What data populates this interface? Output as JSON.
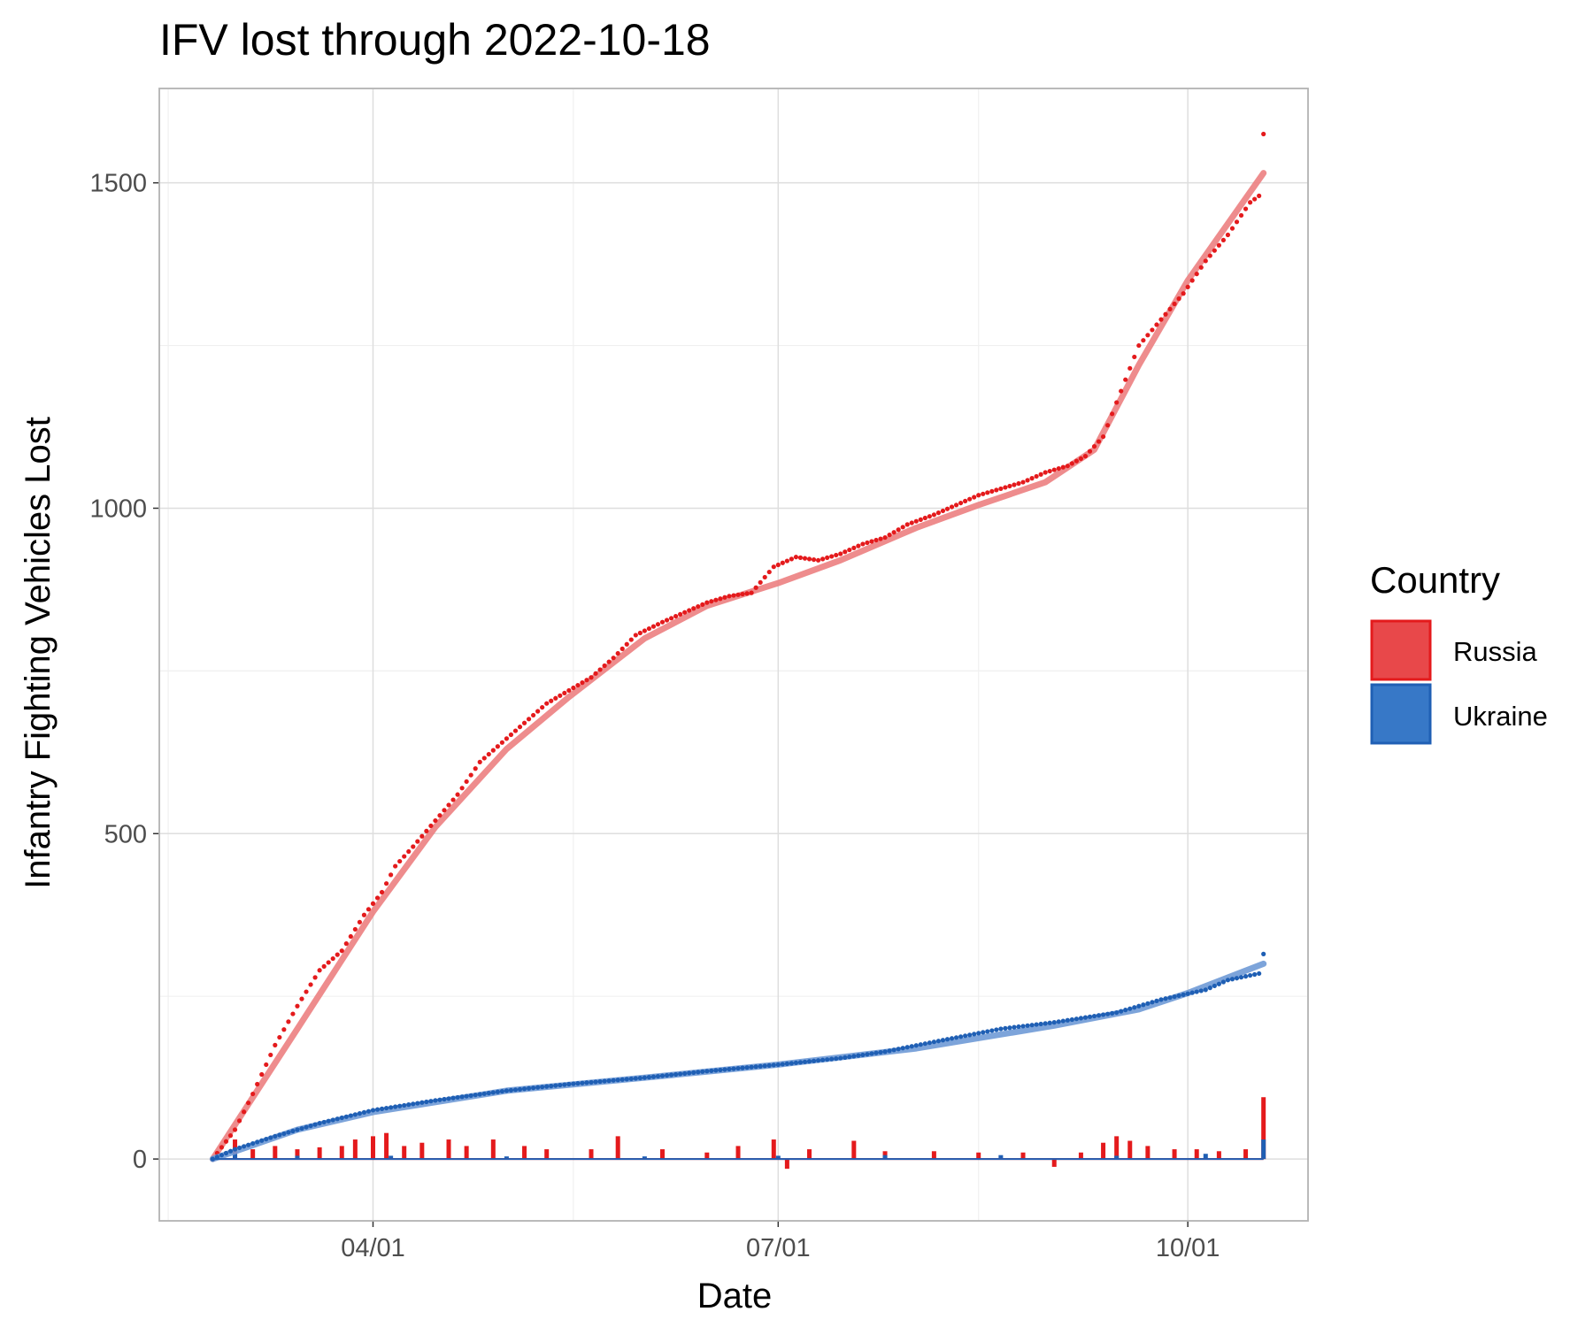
{
  "chart_data": {
    "type": "line",
    "title": "IFV lost through 2022-10-18",
    "xlabel": "Date",
    "ylabel": "Infantry Fighting Vehicles Lost",
    "x_range": [
      "2022-02-24",
      "2022-10-18"
    ],
    "x_ticks": [
      {
        "date": "2022-04-01",
        "label": "04/01"
      },
      {
        "date": "2022-07-01",
        "label": "07/01"
      },
      {
        "date": "2022-10-01",
        "label": "10/01"
      }
    ],
    "x_minor_ticks": [
      "2022-02-14",
      "2022-05-16",
      "2022-08-15"
    ],
    "y_ticks": [
      0,
      500,
      1000,
      1500
    ],
    "y_minor_ticks": [
      250,
      750,
      1250
    ],
    "ylim": [
      -95,
      1645
    ],
    "xlim": [
      "2022-02-12",
      "2022-10-28"
    ],
    "grid": true,
    "legend": {
      "title": "Country",
      "position": "right",
      "entries": [
        {
          "label": "Russia",
          "color": "#e41a1c",
          "fill": "#e8484a"
        },
        {
          "label": "Ukraine",
          "color": "#1f5fb4",
          "fill": "#3778c7"
        }
      ]
    },
    "series": [
      {
        "name": "Russia",
        "color": "#e41a1c",
        "cumulative": [
          [
            "2022-02-24",
            0
          ],
          [
            "2022-03-01",
            45
          ],
          [
            "2022-03-05",
            100
          ],
          [
            "2022-03-10",
            175
          ],
          [
            "2022-03-15",
            235
          ],
          [
            "2022-03-20",
            290
          ],
          [
            "2022-03-25",
            320
          ],
          [
            "2022-03-30",
            375
          ],
          [
            "2022-04-03",
            410
          ],
          [
            "2022-04-06",
            450
          ],
          [
            "2022-04-10",
            480
          ],
          [
            "2022-04-15",
            520
          ],
          [
            "2022-04-20",
            560
          ],
          [
            "2022-04-25",
            610
          ],
          [
            "2022-04-30",
            640
          ],
          [
            "2022-05-05",
            670
          ],
          [
            "2022-05-10",
            700
          ],
          [
            "2022-05-15",
            720
          ],
          [
            "2022-05-20",
            740
          ],
          [
            "2022-05-25",
            770
          ],
          [
            "2022-05-30",
            805
          ],
          [
            "2022-06-05",
            825
          ],
          [
            "2022-06-10",
            840
          ],
          [
            "2022-06-15",
            855
          ],
          [
            "2022-06-20",
            865
          ],
          [
            "2022-06-25",
            870
          ],
          [
            "2022-06-30",
            910
          ],
          [
            "2022-07-05",
            925
          ],
          [
            "2022-07-10",
            920
          ],
          [
            "2022-07-15",
            930
          ],
          [
            "2022-07-20",
            945
          ],
          [
            "2022-07-25",
            955
          ],
          [
            "2022-07-30",
            975
          ],
          [
            "2022-08-05",
            990
          ],
          [
            "2022-08-10",
            1005
          ],
          [
            "2022-08-15",
            1020
          ],
          [
            "2022-08-20",
            1030
          ],
          [
            "2022-08-25",
            1040
          ],
          [
            "2022-08-30",
            1055
          ],
          [
            "2022-09-04",
            1065
          ],
          [
            "2022-09-08",
            1080
          ],
          [
            "2022-09-12",
            1110
          ],
          [
            "2022-09-16",
            1180
          ],
          [
            "2022-09-20",
            1250
          ],
          [
            "2022-09-25",
            1290
          ],
          [
            "2022-09-30",
            1330
          ],
          [
            "2022-10-05",
            1380
          ],
          [
            "2022-10-10",
            1420
          ],
          [
            "2022-10-15",
            1470
          ],
          [
            "2022-10-17",
            1480
          ],
          [
            "2022-10-18",
            1575
          ]
        ],
        "smooth": [
          [
            "2022-02-24",
            0
          ],
          [
            "2022-03-15",
            200
          ],
          [
            "2022-04-01",
            380
          ],
          [
            "2022-04-15",
            510
          ],
          [
            "2022-05-01",
            630
          ],
          [
            "2022-05-15",
            710
          ],
          [
            "2022-06-01",
            800
          ],
          [
            "2022-06-15",
            850
          ],
          [
            "2022-07-01",
            885
          ],
          [
            "2022-07-15",
            920
          ],
          [
            "2022-08-01",
            970
          ],
          [
            "2022-08-15",
            1005
          ],
          [
            "2022-08-30",
            1040
          ],
          [
            "2022-09-10",
            1090
          ],
          [
            "2022-09-20",
            1220
          ],
          [
            "2022-10-01",
            1350
          ],
          [
            "2022-10-18",
            1515
          ]
        ]
      },
      {
        "name": "Ukraine",
        "color": "#1f5fb4",
        "cumulative": [
          [
            "2022-02-24",
            0
          ],
          [
            "2022-03-01",
            15
          ],
          [
            "2022-03-10",
            35
          ],
          [
            "2022-03-20",
            55
          ],
          [
            "2022-04-01",
            75
          ],
          [
            "2022-04-15",
            90
          ],
          [
            "2022-05-01",
            105
          ],
          [
            "2022-05-15",
            115
          ],
          [
            "2022-06-01",
            125
          ],
          [
            "2022-06-15",
            135
          ],
          [
            "2022-07-01",
            145
          ],
          [
            "2022-07-15",
            155
          ],
          [
            "2022-07-25",
            165
          ],
          [
            "2022-08-05",
            180
          ],
          [
            "2022-08-20",
            200
          ],
          [
            "2022-09-01",
            210
          ],
          [
            "2022-09-15",
            225
          ],
          [
            "2022-09-25",
            245
          ],
          [
            "2022-10-05",
            260
          ],
          [
            "2022-10-10",
            275
          ],
          [
            "2022-10-17",
            285
          ],
          [
            "2022-10-18",
            315
          ]
        ],
        "smooth": [
          [
            "2022-02-24",
            0
          ],
          [
            "2022-03-15",
            45
          ],
          [
            "2022-04-01",
            72
          ],
          [
            "2022-05-01",
            105
          ],
          [
            "2022-06-01",
            125
          ],
          [
            "2022-07-01",
            145
          ],
          [
            "2022-08-01",
            170
          ],
          [
            "2022-09-01",
            205
          ],
          [
            "2022-09-20",
            230
          ],
          [
            "2022-10-01",
            255
          ],
          [
            "2022-10-18",
            300
          ]
        ]
      }
    ],
    "daily_bars": {
      "Russia": [
        [
          "2022-03-01",
          30
        ],
        [
          "2022-03-05",
          15
        ],
        [
          "2022-03-10",
          20
        ],
        [
          "2022-03-15",
          15
        ],
        [
          "2022-03-20",
          18
        ],
        [
          "2022-03-25",
          20
        ],
        [
          "2022-03-28",
          30
        ],
        [
          "2022-04-01",
          35
        ],
        [
          "2022-04-04",
          40
        ],
        [
          "2022-04-08",
          20
        ],
        [
          "2022-04-12",
          25
        ],
        [
          "2022-04-18",
          30
        ],
        [
          "2022-04-22",
          20
        ],
        [
          "2022-04-28",
          30
        ],
        [
          "2022-05-05",
          20
        ],
        [
          "2022-05-10",
          15
        ],
        [
          "2022-05-20",
          15
        ],
        [
          "2022-05-26",
          35
        ],
        [
          "2022-06-05",
          15
        ],
        [
          "2022-06-15",
          10
        ],
        [
          "2022-06-22",
          20
        ],
        [
          "2022-06-30",
          30
        ],
        [
          "2022-07-03",
          -15
        ],
        [
          "2022-07-08",
          15
        ],
        [
          "2022-07-18",
          28
        ],
        [
          "2022-07-25",
          12
        ],
        [
          "2022-08-05",
          12
        ],
        [
          "2022-08-15",
          10
        ],
        [
          "2022-08-25",
          10
        ],
        [
          "2022-09-01",
          -12
        ],
        [
          "2022-09-07",
          10
        ],
        [
          "2022-09-12",
          25
        ],
        [
          "2022-09-15",
          35
        ],
        [
          "2022-09-18",
          28
        ],
        [
          "2022-09-22",
          20
        ],
        [
          "2022-09-28",
          15
        ],
        [
          "2022-10-03",
          15
        ],
        [
          "2022-10-08",
          12
        ],
        [
          "2022-10-14",
          15
        ],
        [
          "2022-10-18",
          95
        ]
      ],
      "Ukraine": [
        [
          "2022-03-01",
          8
        ],
        [
          "2022-03-15",
          5
        ],
        [
          "2022-04-05",
          5
        ],
        [
          "2022-05-01",
          4
        ],
        [
          "2022-06-01",
          4
        ],
        [
          "2022-07-01",
          5
        ],
        [
          "2022-07-25",
          6
        ],
        [
          "2022-08-20",
          6
        ],
        [
          "2022-09-15",
          5
        ],
        [
          "2022-10-05",
          8
        ],
        [
          "2022-10-18",
          30
        ]
      ]
    }
  }
}
